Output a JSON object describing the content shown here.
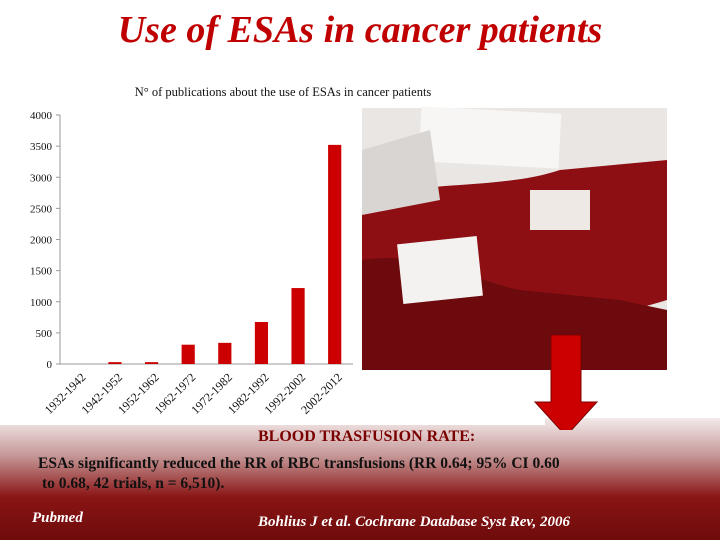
{
  "title": "Use of ESAs in cancer patients",
  "chart_data": {
    "type": "bar",
    "title": "N° of publications about the use of ESAs in cancer patients",
    "categories": [
      "1932-1942",
      "1942-1952",
      "1952-1962",
      "1962-1972",
      "1972-1982",
      "1982-1992",
      "1992-2002",
      "2002-2012"
    ],
    "values": [
      0,
      30,
      30,
      310,
      340,
      675,
      1220,
      3520
    ],
    "color": "#cc0000",
    "ylim": [
      0,
      4000
    ],
    "yticks": [
      0,
      500,
      1000,
      1500,
      2000,
      2500,
      3000,
      3500,
      4000
    ]
  },
  "summary": {
    "heading": "BLOOD TRASFUSION RATE:",
    "lines": [
      "ESAs significantly reduced the RR of RBC transfusions (RR 0.64; 95% CI 0.60",
      "to 0.68, 42 trials, n = 6,510)."
    ]
  },
  "source": "Pubmed",
  "citation": "Bohlius J et al. Cochrane Database Syst Rev, 2006"
}
